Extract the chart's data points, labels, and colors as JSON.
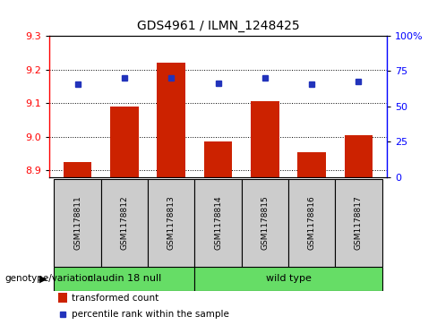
{
  "title": "GDS4961 / ILMN_1248425",
  "samples": [
    "GSM1178811",
    "GSM1178812",
    "GSM1178813",
    "GSM1178814",
    "GSM1178815",
    "GSM1178816",
    "GSM1178817"
  ],
  "red_values": [
    8.925,
    9.09,
    9.22,
    8.985,
    9.105,
    8.955,
    9.005
  ],
  "blue_values": [
    9.155,
    9.175,
    9.175,
    9.16,
    9.175,
    9.155,
    9.165
  ],
  "ylim_left": [
    8.88,
    9.3
  ],
  "yticks_left": [
    8.9,
    9.0,
    9.1,
    9.2,
    9.3
  ],
  "yticks_right": [
    0,
    25,
    50,
    75,
    100
  ],
  "ytick_labels_right": [
    "0",
    "25",
    "50",
    "75",
    "100%"
  ],
  "bar_color": "#cc2200",
  "dot_color": "#2233bb",
  "group1_label": "claudin 18 null",
  "group2_label": "wild type",
  "group1_indices": [
    0,
    1,
    2
  ],
  "group2_indices": [
    3,
    4,
    5,
    6
  ],
  "group_bg_color": "#66dd66",
  "sample_bg_color": "#cccccc",
  "legend_bar_label": "transformed count",
  "legend_dot_label": "percentile rank within the sample",
  "genotype_label": "genotype/variation"
}
